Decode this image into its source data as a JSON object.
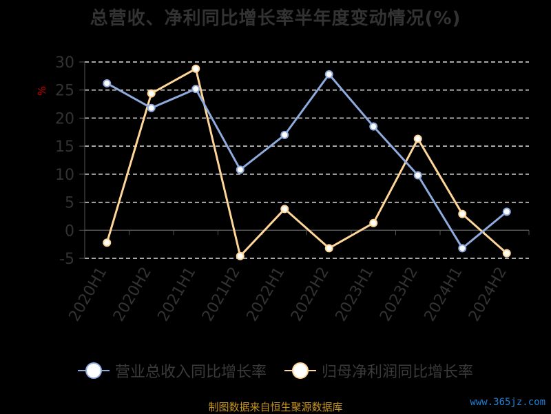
{
  "title": "总营收、净利同比增长率半年度变动情况(%)",
  "source": "制图数据来自恒生聚源数据库",
  "watermark": "www.365jz.com",
  "chart_data": {
    "type": "line",
    "title": "总营收、净利同比增长率半年度变动情况(%)",
    "ylabel": "%",
    "xlabel": "",
    "ylim": [
      -5,
      30
    ],
    "yticks": [
      30,
      25,
      20,
      15,
      10,
      5,
      0,
      -5
    ],
    "grid": true,
    "legend_position": "bottom",
    "categories": [
      "2020H1",
      "2020H2",
      "2021H1",
      "2021H2",
      "2022H1",
      "2022H2",
      "2023H1",
      "2023H2",
      "2024H1",
      "2024H2"
    ],
    "series": [
      {
        "name": "营业总收入同比增长率",
        "color": "#8faadc",
        "values": [
          26.2,
          21.8,
          25.2,
          10.8,
          17.0,
          27.8,
          18.5,
          9.8,
          -3.2,
          3.3
        ]
      },
      {
        "name": "归母净利润同比增长率",
        "color": "#ffd699",
        "values": [
          -2.2,
          24.4,
          28.8,
          -4.6,
          3.8,
          -3.2,
          1.3,
          16.3,
          2.9,
          -4.1
        ]
      }
    ]
  }
}
